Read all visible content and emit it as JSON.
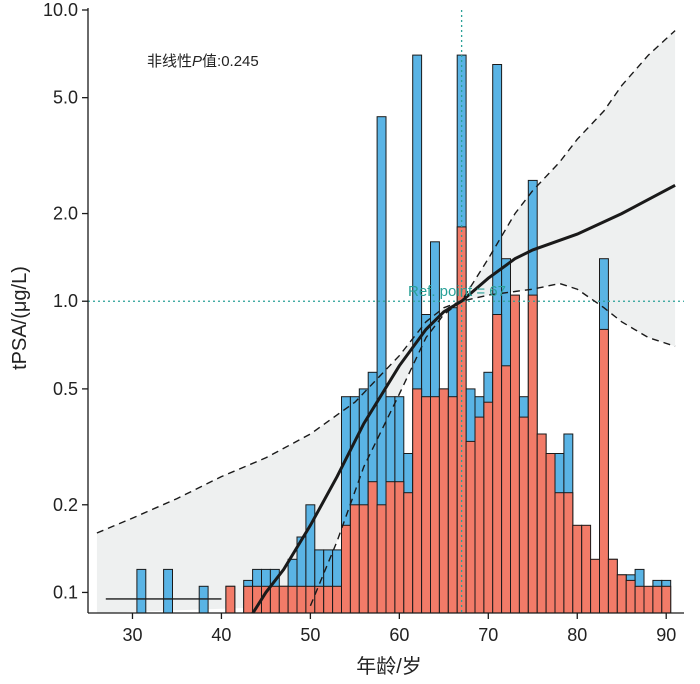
{
  "chart_data": {
    "type": "bar",
    "xlabel": "年龄/岁",
    "ylabel": "tPSA/(μg/L)",
    "yscale": "log",
    "xlim": [
      25,
      92
    ],
    "ylim": [
      0.085,
      10.0
    ],
    "xticks": [
      30,
      40,
      50,
      60,
      70,
      80,
      90
    ],
    "xtick_labels": [
      "30",
      "40",
      "50",
      "60",
      "70",
      "80",
      "90"
    ],
    "yticks": [
      0.1,
      0.2,
      0.5,
      1.0,
      2.0,
      5.0,
      10.0
    ],
    "ytick_labels": [
      "0.1",
      "0.2",
      "0.5",
      "1.0",
      "2.0",
      "5.0",
      "10.0"
    ],
    "annotation": {
      "prefix": "非线性",
      "italic": "P",
      "suffix": "值:0.245"
    },
    "reference": {
      "label": "Ref. point = 67",
      "x": 67,
      "y": 1.0
    },
    "colors": {
      "blue": "#5ab4e5",
      "red": "#f27b68",
      "curve": "#1a1a1a",
      "band": "#eef0f0",
      "ref": "#2aa198"
    },
    "bars": {
      "width": 1,
      "bottom": 0.085,
      "blue": [
        [
          31,
          0.12
        ],
        [
          34,
          0.12
        ],
        [
          38,
          0.105
        ],
        [
          41,
          0.105
        ],
        [
          43,
          0.11
        ],
        [
          44,
          0.12
        ],
        [
          45,
          0.12
        ],
        [
          46,
          0.12
        ],
        [
          47,
          0.105
        ],
        [
          48,
          0.13
        ],
        [
          49,
          0.155
        ],
        [
          50,
          0.2
        ],
        [
          51,
          0.14
        ],
        [
          52,
          0.14
        ],
        [
          53,
          0.14
        ],
        [
          54,
          0.47
        ],
        [
          55,
          0.47
        ],
        [
          56,
          0.5
        ],
        [
          57,
          0.57
        ],
        [
          58,
          4.3
        ],
        [
          59,
          0.47
        ],
        [
          60,
          0.47
        ],
        [
          61,
          0.3
        ],
        [
          62,
          7.0
        ],
        [
          63,
          0.9
        ],
        [
          64,
          1.6
        ],
        [
          65,
          0.5
        ],
        [
          66,
          0.95
        ],
        [
          67,
          7.0
        ],
        [
          68,
          0.5
        ],
        [
          69,
          0.47
        ],
        [
          70,
          0.57
        ],
        [
          71,
          6.5
        ],
        [
          72,
          1.4
        ],
        [
          73,
          0.4
        ],
        [
          74,
          0.47
        ],
        [
          75,
          2.6
        ],
        [
          76,
          0.35
        ],
        [
          77,
          0.3
        ],
        [
          78,
          0.3
        ],
        [
          79,
          0.35
        ],
        [
          83,
          1.4
        ],
        [
          84,
          0.13
        ],
        [
          85,
          0.115
        ],
        [
          86,
          0.115
        ],
        [
          87,
          0.12
        ],
        [
          89,
          0.11
        ],
        [
          90,
          0.11
        ]
      ],
      "red": [
        [
          41,
          0.105
        ],
        [
          43,
          0.105
        ],
        [
          44,
          0.105
        ],
        [
          45,
          0.105
        ],
        [
          46,
          0.105
        ],
        [
          47,
          0.105
        ],
        [
          48,
          0.105
        ],
        [
          49,
          0.105
        ],
        [
          50,
          0.105
        ],
        [
          51,
          0.105
        ],
        [
          52,
          0.105
        ],
        [
          53,
          0.105
        ],
        [
          54,
          0.17
        ],
        [
          55,
          0.2
        ],
        [
          56,
          0.2
        ],
        [
          57,
          0.24
        ],
        [
          58,
          0.2
        ],
        [
          59,
          0.24
        ],
        [
          60,
          0.24
        ],
        [
          61,
          0.22
        ],
        [
          62,
          0.5
        ],
        [
          63,
          0.47
        ],
        [
          64,
          0.47
        ],
        [
          65,
          0.5
        ],
        [
          66,
          0.47
        ],
        [
          67,
          1.8
        ],
        [
          68,
          0.33
        ],
        [
          69,
          0.4
        ],
        [
          70,
          0.45
        ],
        [
          71,
          0.9
        ],
        [
          72,
          0.6
        ],
        [
          73,
          1.05
        ],
        [
          74,
          0.4
        ],
        [
          75,
          1.05
        ],
        [
          76,
          0.35
        ],
        [
          77,
          0.3
        ],
        [
          78,
          0.22
        ],
        [
          79,
          0.22
        ],
        [
          80,
          0.17
        ],
        [
          81,
          0.17
        ],
        [
          82,
          0.13
        ],
        [
          83,
          0.8
        ],
        [
          84,
          0.13
        ],
        [
          85,
          0.115
        ],
        [
          86,
          0.11
        ],
        [
          87,
          0.105
        ],
        [
          88,
          0.105
        ],
        [
          89,
          0.105
        ],
        [
          90,
          0.105
        ]
      ]
    },
    "baseline_line": {
      "x": [
        27,
        40
      ],
      "y": 0.095
    },
    "curve": {
      "x": [
        43,
        45,
        47,
        50,
        53,
        56,
        60,
        63,
        65,
        67,
        70,
        73,
        75,
        80,
        85,
        91
      ],
      "y": [
        0.08,
        0.1,
        0.12,
        0.17,
        0.25,
        0.38,
        0.6,
        0.8,
        0.92,
        1.0,
        1.2,
        1.4,
        1.5,
        1.7,
        2.0,
        2.5
      ]
    },
    "ci_upper": {
      "x": [
        26,
        30,
        35,
        40,
        45,
        50,
        55,
        60,
        63,
        65,
        67,
        70,
        73,
        75,
        78,
        80,
        83,
        85,
        88,
        91
      ],
      "y": [
        0.16,
        0.18,
        0.21,
        0.25,
        0.29,
        0.35,
        0.45,
        0.65,
        0.85,
        0.95,
        1.0,
        1.4,
        2.0,
        2.4,
        3.0,
        3.6,
        4.5,
        5.5,
        7.0,
        8.5
      ]
    },
    "ci_lower": {
      "x": [
        50,
        53,
        56,
        60,
        63,
        65,
        67,
        70,
        73,
        75,
        78,
        80,
        83,
        85,
        88,
        91
      ],
      "y": [
        0.09,
        0.15,
        0.27,
        0.48,
        0.75,
        0.9,
        1.0,
        1.05,
        1.08,
        1.1,
        1.15,
        1.1,
        0.95,
        0.85,
        0.75,
        0.7
      ]
    }
  }
}
